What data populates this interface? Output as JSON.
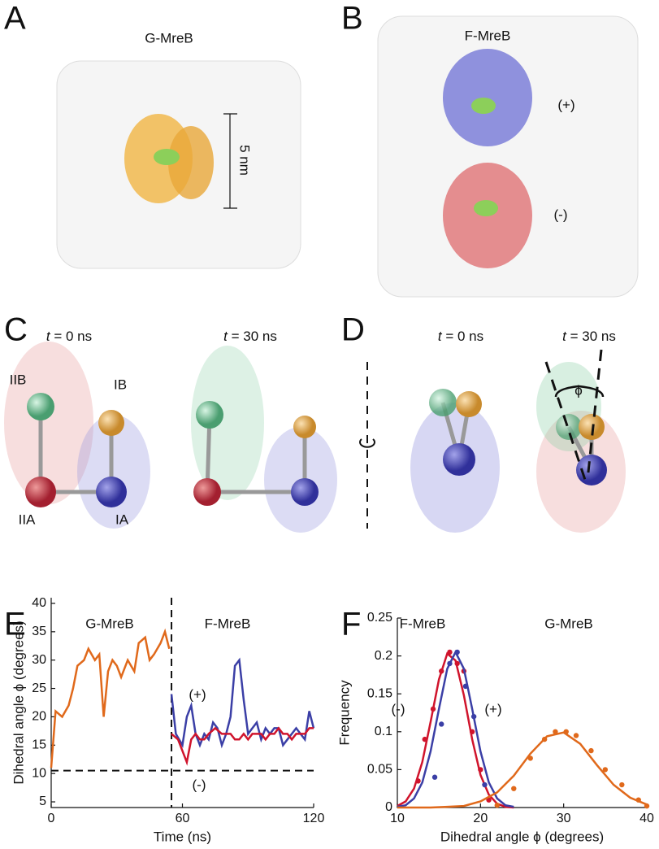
{
  "panel_labels": [
    "A",
    "B",
    "C",
    "D",
    "E",
    "F"
  ],
  "illustrations": {
    "A": {
      "title": "G-MreB",
      "scale_bar": "5 nm"
    },
    "B": {
      "title": "F-MreB",
      "top": "(+)",
      "bottom": "(-)"
    },
    "C": {
      "times": [
        {
          "var": "t",
          "rest": " = 0 ns"
        },
        {
          "var": "t",
          "rest": " = 30 ns"
        }
      ],
      "domains": [
        "IIB",
        "IB",
        "IIA",
        "IA"
      ]
    },
    "D": {
      "times": [
        {
          "var": "t",
          "rest": " = 0 ns"
        },
        {
          "var": "t",
          "rest": " = 30 ns"
        }
      ],
      "angle": "ϕ"
    }
  },
  "chart_data": [
    {
      "type": "line",
      "xlabel": "Time (ns)",
      "ylabel": "Dihedral angle ϕ (degrees)",
      "xlim": [
        0,
        120
      ],
      "xticks": [
        0,
        60,
        120
      ],
      "ylim": [
        4,
        41
      ],
      "yticks": [
        5,
        10,
        15,
        20,
        25,
        30,
        35,
        40
      ],
      "vline": 55,
      "hline": 10.5,
      "annotations": [
        "F-MreB"
      ],
      "series": [
        {
          "name": "G-MreB",
          "color": "#e0691b",
          "x": [
            0,
            2,
            5,
            8,
            10,
            12,
            15,
            17,
            20,
            22,
            24,
            26,
            28,
            30,
            32,
            35,
            38,
            40,
            43,
            45,
            47,
            50,
            52,
            54
          ],
          "values": [
            11,
            21,
            20,
            22,
            25,
            29,
            30,
            32,
            30,
            31,
            20,
            28,
            30,
            29,
            27,
            30,
            28,
            33,
            34,
            30,
            31,
            33,
            35,
            32
          ]
        },
        {
          "name": "(+)",
          "color": "#3b3fa6",
          "x": [
            55,
            57,
            60,
            62,
            64,
            66,
            68,
            70,
            72,
            74,
            76,
            78,
            80,
            82,
            84,
            86,
            88,
            90,
            92,
            94,
            96,
            98,
            100,
            102,
            104,
            106,
            108,
            110,
            112,
            114,
            116,
            118,
            120
          ],
          "values": [
            24,
            17,
            15,
            20,
            22,
            17,
            15,
            17,
            16,
            19,
            18,
            15,
            17,
            20,
            29,
            30,
            23,
            17,
            18,
            19,
            16,
            18,
            17,
            18,
            18,
            15,
            16,
            17,
            18,
            17,
            16,
            21,
            18
          ]
        },
        {
          "name": "(-)",
          "color": "#d0142c",
          "x": [
            55,
            58,
            60,
            62,
            64,
            66,
            68,
            70,
            72,
            75,
            78,
            80,
            82,
            84,
            86,
            88,
            90,
            92,
            94,
            96,
            98,
            100,
            102,
            104,
            106,
            108,
            110,
            112,
            114,
            116,
            118,
            120
          ],
          "values": [
            17,
            16,
            14,
            12,
            16,
            17,
            16,
            16,
            17,
            18,
            17,
            17,
            17,
            16,
            16,
            17,
            16,
            17,
            17,
            17,
            16,
            17,
            17,
            18,
            17,
            17,
            16,
            17,
            17,
            17,
            18,
            18
          ]
        }
      ]
    },
    {
      "type": "scatter",
      "xlabel": "Dihedral angle ϕ (degrees)",
      "ylabel": "Frequency",
      "xlim": [
        10,
        40
      ],
      "xticks": [
        10,
        20,
        30,
        40
      ],
      "ylim": [
        0,
        0.25
      ],
      "yticks": [
        0,
        0.05,
        0.1,
        0.15,
        0.2,
        0.25
      ],
      "annotations": [
        "F-MreB"
      ],
      "series": [
        {
          "name": "(-)",
          "color": "#d0142c",
          "x": [
            12.5,
            13.3,
            14.3,
            15.3,
            16.3,
            17.2,
            18.0,
            19.0,
            20.0,
            21.0
          ],
          "values": [
            0.035,
            0.09,
            0.13,
            0.18,
            0.205,
            0.19,
            0.18,
            0.1,
            0.05,
            0.01
          ],
          "fit_x": [
            10,
            11,
            12,
            13,
            14,
            15,
            16,
            17,
            18,
            19,
            20,
            21,
            22,
            23,
            24
          ],
          "fit_values": [
            0.002,
            0.008,
            0.025,
            0.06,
            0.113,
            0.169,
            0.203,
            0.194,
            0.148,
            0.09,
            0.043,
            0.017,
            0.005,
            0.001,
            0
          ]
        },
        {
          "name": "(+)",
          "color": "#3b3fa6",
          "x": [
            14.5,
            15.3,
            16.3,
            17.2,
            18.2,
            19.2,
            20.5
          ],
          "values": [
            0.04,
            0.11,
            0.19,
            0.205,
            0.16,
            0.12,
            0.03
          ],
          "fit_x": [
            10,
            11,
            12,
            13,
            14,
            15,
            16,
            17,
            18,
            19,
            20,
            21,
            22,
            23,
            24
          ],
          "fit_values": [
            0.001,
            0.003,
            0.012,
            0.033,
            0.074,
            0.13,
            0.183,
            0.205,
            0.183,
            0.13,
            0.074,
            0.033,
            0.012,
            0.003,
            0.001
          ]
        },
        {
          "name": "G-MreB",
          "color": "#e0691b",
          "x": [
            22,
            24,
            26,
            27.7,
            29,
            30.3,
            31.5,
            33.3,
            35,
            37,
            39,
            40
          ],
          "values": [
            0.003,
            0.025,
            0.065,
            0.09,
            0.1,
            0.1,
            0.095,
            0.075,
            0.05,
            0.03,
            0.01,
            0.002
          ],
          "fit_x": [
            10,
            12,
            14,
            16,
            18,
            20,
            22,
            24,
            26,
            28,
            30,
            32,
            34,
            36,
            38,
            40
          ],
          "fit_values": [
            0,
            0,
            0,
            0.001,
            0.002,
            0.008,
            0.02,
            0.042,
            0.071,
            0.094,
            0.099,
            0.084,
            0.056,
            0.03,
            0.013,
            0.004
          ]
        }
      ]
    }
  ]
}
